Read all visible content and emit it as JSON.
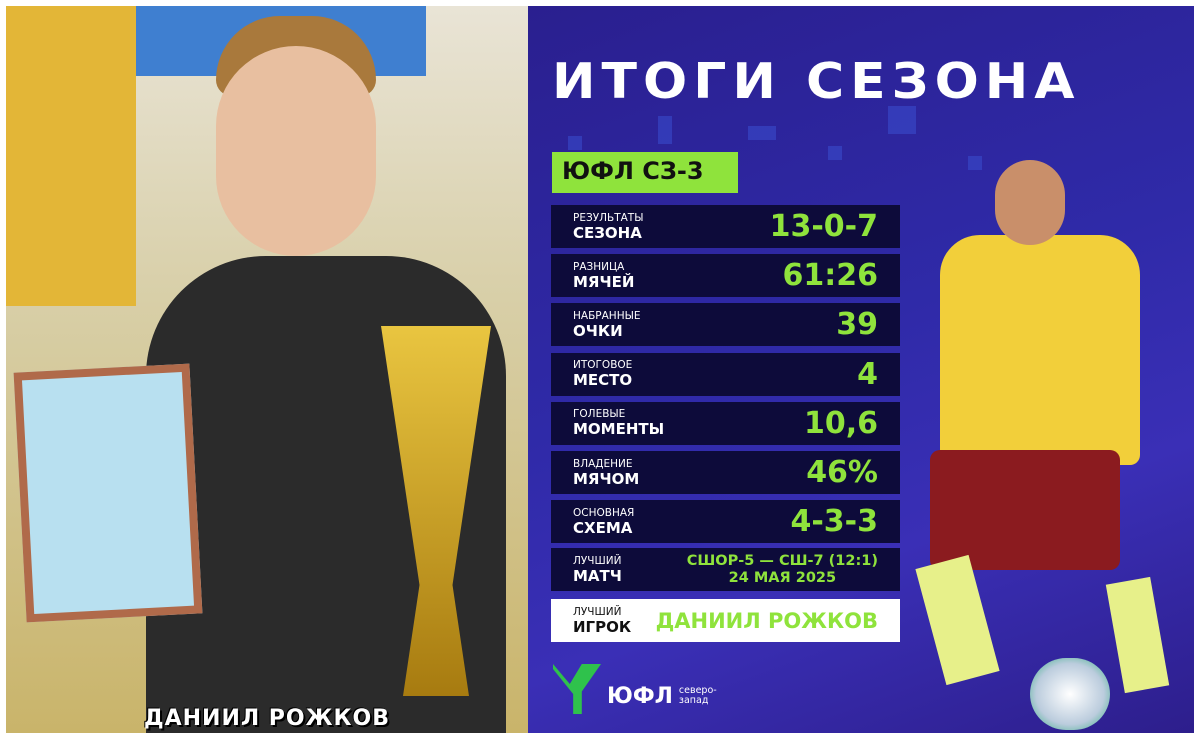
{
  "title": "ИТОГИ СЕЗОНА",
  "league_badge": "ЮФЛ СЗ-3",
  "stats": [
    {
      "label_small": "РЕЗУЛЬТАТЫ",
      "label_big": "СЕЗОНА",
      "value": "13-0-7"
    },
    {
      "label_small": "РАЗНИЦА",
      "label_big": "МЯЧЕЙ",
      "value": "61:26"
    },
    {
      "label_small": "НАБРАННЫЕ",
      "label_big": "ОЧКИ",
      "value": "39"
    },
    {
      "label_small": "ИТОГОВОЕ",
      "label_big": "МЕСТО",
      "value": "4"
    },
    {
      "label_small": "ГОЛЕВЫЕ",
      "label_big": "МОМЕНТЫ",
      "value": "10,6"
    },
    {
      "label_small": "ВЛАДЕНИЕ",
      "label_big": "МЯЧОМ",
      "value": "46%"
    },
    {
      "label_small": "ОСНОВНАЯ",
      "label_big": "СХЕМА",
      "value": "4-3-3"
    }
  ],
  "best_match": {
    "label_small": "ЛУЧШИЙ",
    "label_big": "МАТЧ",
    "line1": "СШОР-5 — СШ-7 (12:1)",
    "line2": "24 МАЯ 2025"
  },
  "best_player": {
    "label_small": "ЛУЧШИЙ",
    "label_big": "ИГРОК",
    "value": "ДАНИИЛ РОЖКОВ"
  },
  "logo": {
    "name": "ЮФЛ",
    "region": "северо-запад"
  },
  "photo_caption": "ДАНИИЛ РОЖКОВ",
  "colors": {
    "accent": "#8fe33c",
    "panel": "#2f2aa8",
    "row": "#0d0b3a"
  }
}
